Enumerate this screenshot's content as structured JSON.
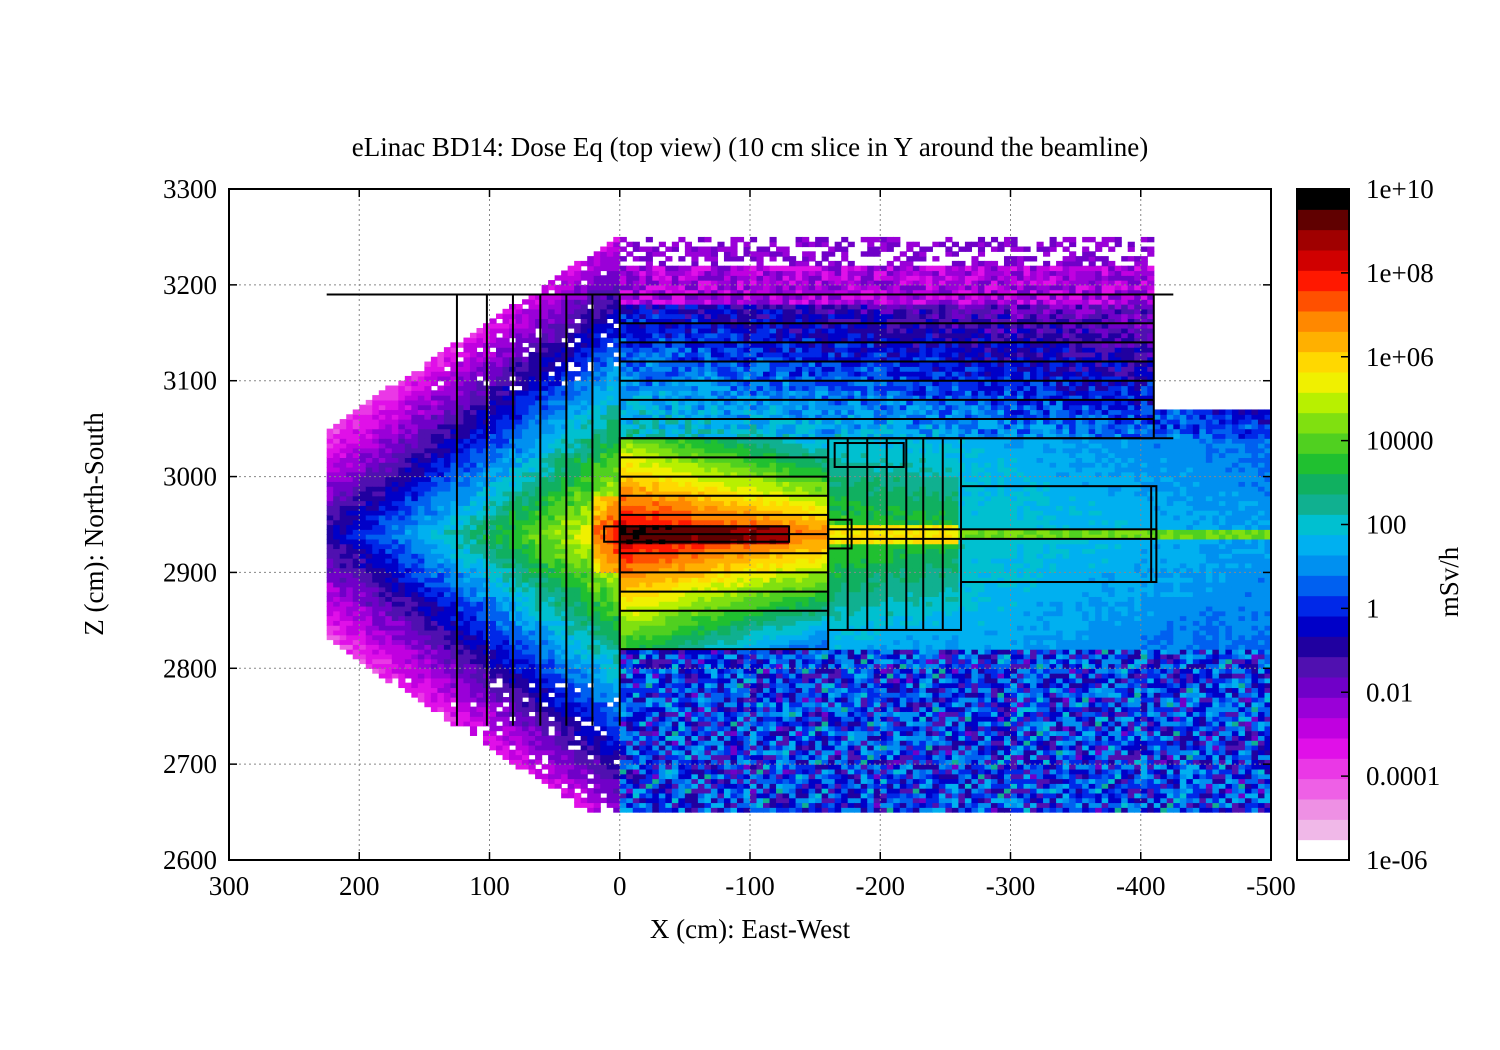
{
  "chart_data": {
    "type": "heatmap",
    "title": "eLinac BD14: Dose Eq (top view)  (10 cm slice in Y around the beamline)",
    "xlabel": "X (cm): East-West",
    "ylabel": "Z (cm): North-South",
    "xlim": [
      300,
      -500
    ],
    "ylim": [
      2600,
      3300
    ],
    "x_ticks": [
      300,
      200,
      100,
      0,
      -100,
      -200,
      -300,
      -400,
      -500
    ],
    "x_tick_labels": [
      "300",
      "200",
      "100",
      "0",
      "-100",
      "-200",
      "-300",
      "-400",
      "-500"
    ],
    "y_ticks": [
      2600,
      2700,
      2800,
      2900,
      3000,
      3100,
      3200,
      3300
    ],
    "y_tick_labels": [
      "2600",
      "2700",
      "2800",
      "2900",
      "3000",
      "3100",
      "3200",
      "3300"
    ],
    "grid": true,
    "colorbar": {
      "label": "mSv/h",
      "scale": "log",
      "range": [
        1e-06,
        10000000000.0
      ],
      "tick_values": [
        1e-06,
        0.0001,
        0.01,
        1,
        100,
        10000,
        1000000,
        100000000,
        10000000000
      ],
      "tick_labels": [
        "1e-06",
        "0.0001",
        "0.01",
        "1",
        "100",
        "10000",
        "1e+06",
        "1e+08",
        "1e+10"
      ],
      "colors": [
        "#ffffff",
        "#f0b8e8",
        "#ee90e4",
        "#ee60e6",
        "#ea38e6",
        "#e010e8",
        "#c000e0",
        "#9a00d8",
        "#7000c8",
        "#5010b0",
        "#2000a0",
        "#0000c8",
        "#0028e8",
        "#0060f0",
        "#0090f0",
        "#00b0f0",
        "#00c0d0",
        "#10b090",
        "#10b060",
        "#20c030",
        "#50d020",
        "#80e010",
        "#b8f000",
        "#f0f000",
        "#ffd800",
        "#ffb000",
        "#ff8800",
        "#ff5000",
        "#ff1800",
        "#d00000",
        "#a00000",
        "#600000",
        "#000000"
      ]
    },
    "dose_field": {
      "beam_z": 2940,
      "source_x": 0,
      "peak_log10_msvh": 9,
      "upstream_tail_x_start": 225,
      "data_extent_x": [
        225,
        -500
      ],
      "data_extent_z": [
        2650,
        3250
      ]
    },
    "shielding_outline": {
      "vertical_walls_x": [
        125,
        102,
        82,
        61,
        41,
        21,
        0
      ],
      "vertical_walls_z": [
        2740,
        3190
      ],
      "top_wall": {
        "x": [
          225,
          -425
        ],
        "z": 3190
      },
      "upper_layers_z": [
        3160,
        3140,
        3120,
        3100,
        3080,
        3060,
        3040
      ],
      "upper_layers_x": [
        0,
        -410
      ],
      "core_block": {
        "x": [
          0,
          -160
        ],
        "z": [
          2820,
          3040
        ]
      },
      "middle_block": {
        "x": [
          -160,
          -262
        ],
        "z": [
          2840,
          3040
        ]
      },
      "downstream_block": {
        "x": [
          -262,
          -412
        ],
        "z": [
          2890,
          2990
        ]
      },
      "small_box": {
        "x": [
          -165,
          -218
        ],
        "z": [
          3010,
          3035
        ]
      },
      "beam_pipe": {
        "x": [
          -160,
          -412
        ],
        "z": [
          2935,
          2945
        ]
      },
      "target": {
        "x": [
          12,
          -130
        ],
        "z": [
          2932,
          2948
        ]
      }
    }
  }
}
